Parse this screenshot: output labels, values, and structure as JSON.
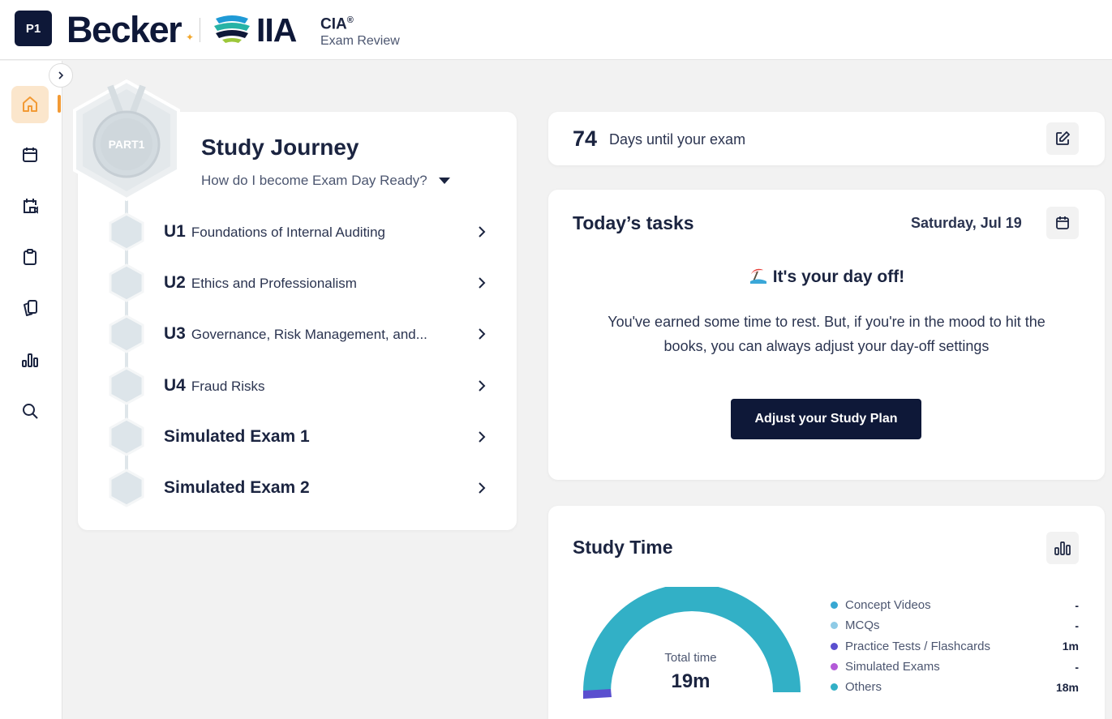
{
  "header": {
    "badge": "P1",
    "brand": "Becker",
    "partner": "IIA",
    "product_title": "CIA",
    "product_reg": "®",
    "product_subtitle": "Exam Review"
  },
  "sidebar": {
    "items": [
      {
        "name": "home",
        "icon": "home-icon",
        "active": true
      },
      {
        "name": "calendar",
        "icon": "calendar-icon"
      },
      {
        "name": "schedule",
        "icon": "calendar-video-icon"
      },
      {
        "name": "clipboard",
        "icon": "clipboard-icon"
      },
      {
        "name": "flashcards",
        "icon": "cards-icon"
      },
      {
        "name": "analytics",
        "icon": "bar-chart-icon"
      },
      {
        "name": "search",
        "icon": "search-icon"
      }
    ]
  },
  "journey": {
    "badge_text": "PART1",
    "title": "Study Journey",
    "subtitle": "How do I become Exam Day Ready?",
    "units": [
      {
        "code": "U1",
        "name": "Foundations of Internal Auditing"
      },
      {
        "code": "U2",
        "name": "Ethics and Professionalism"
      },
      {
        "code": "U3",
        "name": "Governance, Risk Management, and..."
      },
      {
        "code": "U4",
        "name": "Fraud Risks"
      },
      {
        "code": "",
        "name": "Simulated Exam 1"
      },
      {
        "code": "",
        "name": "Simulated Exam 2"
      }
    ]
  },
  "countdown": {
    "days": "74",
    "label": "Days until your exam"
  },
  "tasks": {
    "title": "Today’s tasks",
    "date": "Saturday, Jul 19",
    "dayoff_title": "It's your day off!",
    "message": "You've earned some time to rest. But, if you're in the mood to hit the books, you can always adjust your day-off settings",
    "button": "Adjust your Study Plan"
  },
  "study_time": {
    "title": "Study Time",
    "total_label": "Total time",
    "total_value": "19m",
    "legend": [
      {
        "label": "Concept Videos",
        "value": "-",
        "color": "#37a7d2"
      },
      {
        "label": "MCQs",
        "value": "-",
        "color": "#8fcbe6"
      },
      {
        "label": "Practice Tests / Flashcards",
        "value": "1m",
        "color": "#5a4fcf"
      },
      {
        "label": "Simulated Exams",
        "value": "-",
        "color": "#b35ad8"
      },
      {
        "label": "Others",
        "value": "18m",
        "color": "#32b0c6"
      }
    ]
  },
  "colors": {
    "navy": "#0e1838",
    "accent_orange": "#f29a35",
    "gauge_teal": "#32b0c6",
    "gauge_purple": "#5a4fcf"
  }
}
